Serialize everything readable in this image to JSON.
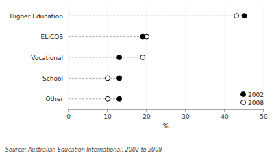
{
  "chart_data": {
    "type": "dot",
    "orientation": "horizontal",
    "categories": [
      "Higher Education",
      "ELICOS",
      "Vocational",
      "School",
      "Other"
    ],
    "series": [
      {
        "name": "2002",
        "color": "black",
        "marker": "circle",
        "values": [
          45,
          19,
          13,
          13,
          13
        ]
      },
      {
        "name": "2008",
        "color": "black",
        "marker": "open-circle",
        "values": [
          43,
          20,
          19,
          10,
          10
        ]
      }
    ],
    "xlabel": "%",
    "xlim": [
      0,
      50
    ],
    "xticks": [
      0,
      10,
      20,
      30,
      40,
      50
    ],
    "legend": "lower right",
    "annotations": [
      "Source: Australian Education International, 2002 to 2008"
    ]
  }
}
